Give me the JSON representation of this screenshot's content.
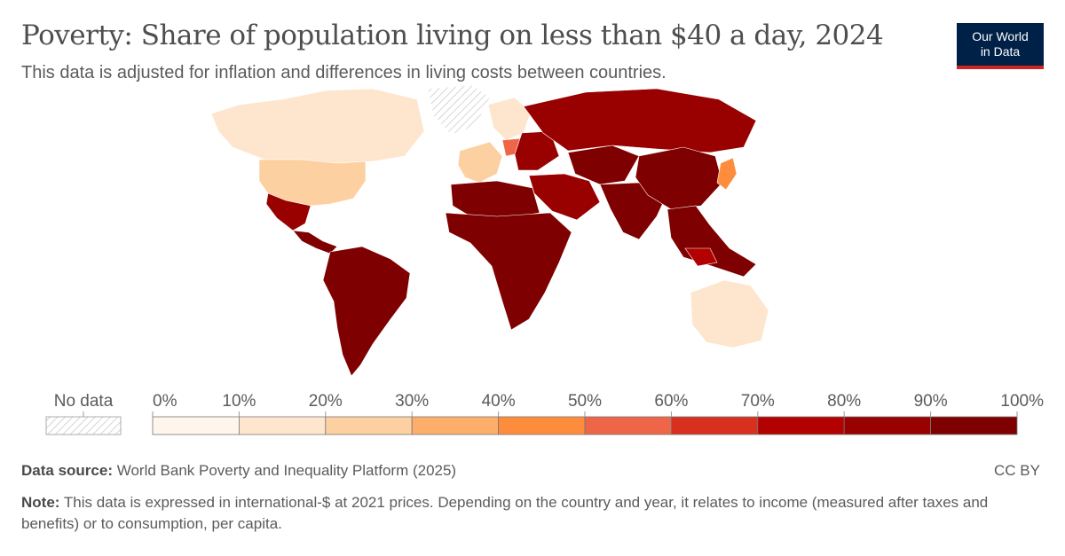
{
  "header": {
    "title": "Poverty: Share of population living on less than $40 a day, 2024",
    "subtitle": "This data is adjusted for inflation and differences in living costs between countries."
  },
  "logo": {
    "line1": "Our World",
    "line2": "in Data",
    "bg": "#002147",
    "accent": "#ce261e"
  },
  "legend": {
    "no_data_label": "No data",
    "ticks": [
      "0%",
      "10%",
      "20%",
      "30%",
      "40%",
      "50%",
      "60%",
      "70%",
      "80%",
      "90%",
      "100%"
    ],
    "colors": [
      "#fff5eb",
      "#fee6ce",
      "#fdd0a2",
      "#fdae6b",
      "#fd8d3c",
      "#ef6548",
      "#d7301f",
      "#b30000",
      "#990000",
      "#7f0000"
    ]
  },
  "chart_data": {
    "type": "map",
    "metric": "Share of population living on less than $40 a day",
    "year": 2024,
    "value_range": [
      0,
      100
    ],
    "regions": [
      {
        "region": "Canada",
        "value": 15
      },
      {
        "region": "United States",
        "value": 20
      },
      {
        "region": "Greenland",
        "value": null
      },
      {
        "region": "Mexico",
        "value": 88
      },
      {
        "region": "Central America & Caribbean",
        "value": 92
      },
      {
        "region": "South America",
        "value": 90
      },
      {
        "region": "Western Europe",
        "value": 25
      },
      {
        "region": "Northern Europe",
        "value": 15
      },
      {
        "region": "Poland",
        "value": 55
      },
      {
        "region": "Eastern Europe",
        "value": 82
      },
      {
        "region": "Russia",
        "value": 83
      },
      {
        "region": "Middle East",
        "value": 88
      },
      {
        "region": "North Africa",
        "value": 92
      },
      {
        "region": "Sub-Saharan Africa",
        "value": 98
      },
      {
        "region": "Central Asia",
        "value": 97
      },
      {
        "region": "South Asia",
        "value": 99
      },
      {
        "region": "China",
        "value": 95
      },
      {
        "region": "Japan",
        "value": 40
      },
      {
        "region": "Southeast Asia",
        "value": 96
      },
      {
        "region": "Malaysia",
        "value": 72
      },
      {
        "region": "Australia",
        "value": 18
      }
    ]
  },
  "footer": {
    "source_label": "Data source:",
    "source_text": "World Bank Poverty and Inequality Platform (2025)",
    "license": "CC BY",
    "note_label": "Note:",
    "note_text": "This data is expressed in international-$ at 2021 prices. Depending on the country and year, it relates to income (measured after taxes and benefits) or to consumption, per capita."
  }
}
